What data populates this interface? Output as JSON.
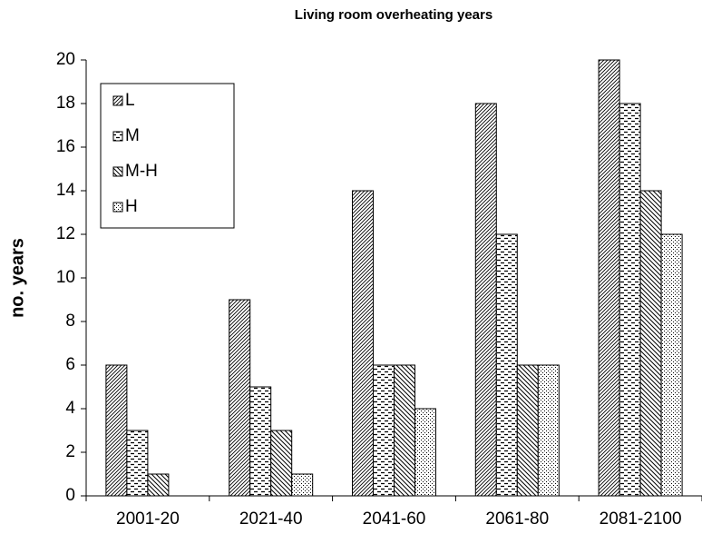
{
  "chart_data": {
    "type": "bar",
    "title": "Living room overheating years",
    "y_label": "no. years",
    "categories": [
      "2001-20",
      "2021-40",
      "2041-60",
      "2061-80",
      "2081-2100"
    ],
    "series": [
      {
        "name": "L",
        "color": "#000000",
        "values": [
          6,
          9,
          14,
          18,
          20
        ]
      },
      {
        "name": "M",
        "color": "#000000",
        "values": [
          3,
          5,
          6,
          12,
          18
        ]
      },
      {
        "name": "M-H",
        "color": "#000000",
        "values": [
          1,
          3,
          6,
          6,
          14
        ]
      },
      {
        "name": "H",
        "color": "#000000",
        "values": [
          0,
          1,
          4,
          6,
          12
        ]
      }
    ],
    "ylim": [
      0,
      20
    ],
    "yticks": [
      0,
      2,
      4,
      6,
      8,
      10,
      12,
      14,
      16,
      18,
      20
    ],
    "grid": false,
    "legend": "top-left"
  }
}
